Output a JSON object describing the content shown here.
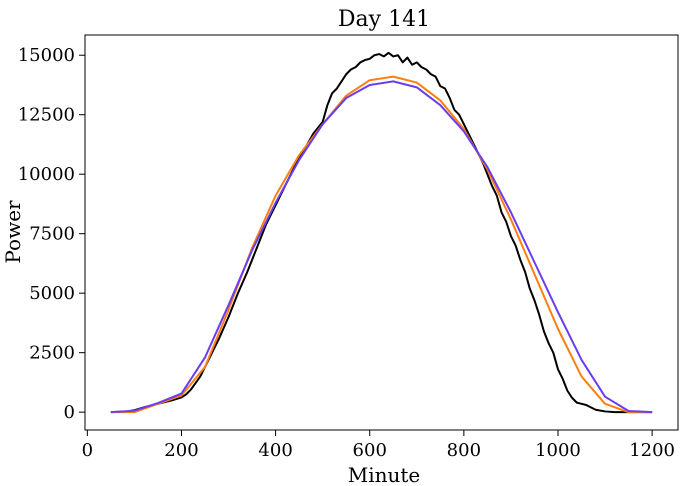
{
  "chart_data": {
    "type": "line",
    "title": "Day 141",
    "xlabel": "Minute",
    "ylabel": "Power",
    "xlim": [
      -5,
      1255
    ],
    "ylim": [
      -750,
      15850
    ],
    "xticks": [
      0,
      200,
      400,
      600,
      800,
      1000,
      1200
    ],
    "yticks": [
      0,
      2500,
      5000,
      7500,
      10000,
      12500,
      15000
    ],
    "grid": false,
    "legend": "none",
    "series": [
      {
        "color": "#000000",
        "x": [
          50,
          80,
          100,
          120,
          150,
          180,
          200,
          210,
          220,
          240,
          260,
          280,
          300,
          320,
          340,
          360,
          380,
          400,
          420,
          440,
          460,
          480,
          500,
          510,
          520,
          530,
          540,
          550,
          560,
          570,
          580,
          590,
          600,
          610,
          620,
          630,
          640,
          650,
          660,
          670,
          680,
          690,
          700,
          710,
          720,
          730,
          740,
          750,
          760,
          770,
          780,
          790,
          800,
          810,
          820,
          830,
          840,
          850,
          860,
          870,
          880,
          890,
          900,
          910,
          920,
          930,
          940,
          950,
          960,
          970,
          980,
          990,
          1000,
          1010,
          1020,
          1030,
          1040,
          1050,
          1060,
          1080,
          1100,
          1120,
          1150,
          1200
        ],
        "y": [
          0,
          20,
          80,
          200,
          350,
          500,
          620,
          750,
          950,
          1500,
          2300,
          3100,
          4000,
          5000,
          5900,
          6900,
          7900,
          8700,
          9500,
          10300,
          11000,
          11700,
          12200,
          12900,
          13400,
          13600,
          13900,
          14200,
          14400,
          14500,
          14700,
          14800,
          14850,
          15000,
          15050,
          14950,
          15100,
          14950,
          15000,
          14700,
          14900,
          14600,
          14700,
          14500,
          14400,
          14200,
          14100,
          13700,
          13600,
          13200,
          12700,
          12500,
          12100,
          11700,
          11300,
          10900,
          10500,
          10000,
          9500,
          9100,
          8400,
          8000,
          7400,
          7000,
          6400,
          5900,
          5200,
          4700,
          4100,
          3400,
          2900,
          2500,
          1800,
          1400,
          900,
          600,
          400,
          350,
          300,
          100,
          30,
          0,
          0,
          0
        ]
      },
      {
        "color": "#ff7f0e",
        "x": [
          50,
          100,
          150,
          200,
          250,
          300,
          350,
          400,
          450,
          500,
          550,
          600,
          650,
          700,
          750,
          800,
          850,
          900,
          950,
          1000,
          1050,
          1100,
          1150,
          1200
        ],
        "y": [
          0,
          0,
          350,
          700,
          1900,
          4300,
          6900,
          9100,
          10800,
          12100,
          13300,
          13950,
          14100,
          13850,
          13100,
          11900,
          10200,
          8100,
          5800,
          3500,
          1500,
          350,
          0,
          0
        ]
      },
      {
        "color": "#6a3df0",
        "x": [
          50,
          100,
          150,
          200,
          250,
          300,
          350,
          400,
          450,
          500,
          550,
          600,
          650,
          700,
          750,
          800,
          850,
          900,
          950,
          1000,
          1050,
          1100,
          1150,
          1200
        ],
        "y": [
          0,
          60,
          380,
          780,
          2300,
          4500,
          6800,
          8800,
          10600,
          12100,
          13200,
          13750,
          13900,
          13650,
          12900,
          11800,
          10300,
          8400,
          6300,
          4200,
          2200,
          650,
          50,
          0
        ]
      }
    ]
  }
}
